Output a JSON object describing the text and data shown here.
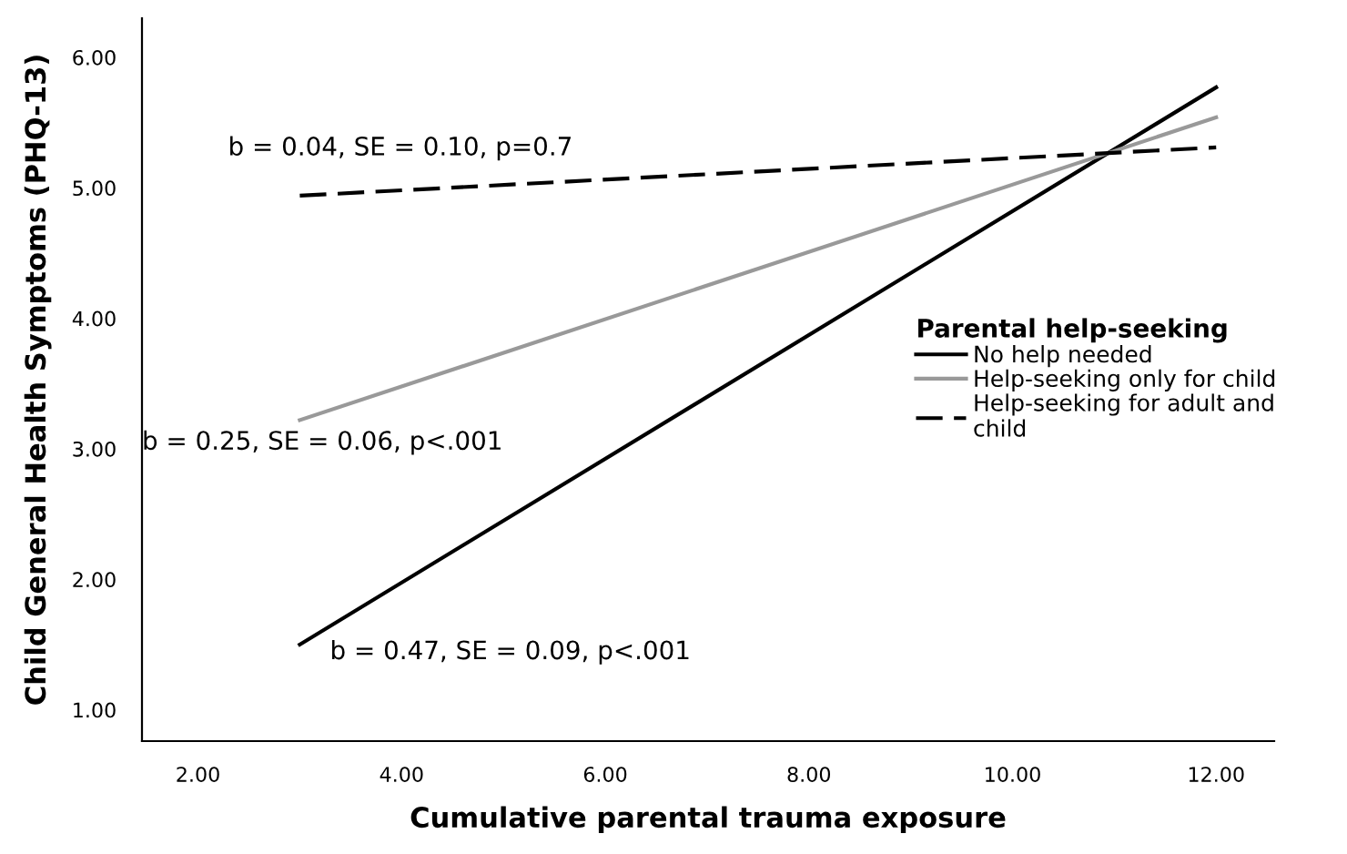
{
  "chart_data": {
    "type": "line",
    "xlabel": "Cumulative parental trauma exposure",
    "ylabel": "Child General Health Symptoms (PHQ-13)",
    "legend_title": "Parental help-seeking",
    "x": [
      3,
      12
    ],
    "series": [
      {
        "name": "No help needed",
        "color": "#000000",
        "values": [
          1.5,
          5.77
        ],
        "line_style": "solid"
      },
      {
        "name": "Help-seeking only for child",
        "color": "#999999",
        "values": [
          3.22,
          5.54
        ],
        "line_style": "solid"
      },
      {
        "name": "Help-seeking for adult and\nchild",
        "color": "#000000",
        "values": [
          4.94,
          5.31
        ],
        "line_style": "dashed"
      }
    ],
    "xlim": [
      1.45,
      12.57
    ],
    "ylim": [
      0.76,
      6.3
    ],
    "xticks": [
      {
        "value": 2,
        "label": "2.00"
      },
      {
        "value": 4,
        "label": "4.00"
      },
      {
        "value": 6,
        "label": "6.00"
      },
      {
        "value": 8,
        "label": "8.00"
      },
      {
        "value": 10,
        "label": "10.00"
      },
      {
        "value": 12,
        "label": "12.00"
      }
    ],
    "yticks": [
      {
        "value": 1,
        "label": "1.00"
      },
      {
        "value": 2,
        "label": "2.00"
      },
      {
        "value": 3,
        "label": "3.00"
      },
      {
        "value": 4,
        "label": "4.00"
      },
      {
        "value": 5,
        "label": "5.00"
      },
      {
        "value": 6,
        "label": "6.00"
      }
    ],
    "annotations": [
      "b = 0.04, SE = 0.10, p=0.7",
      "b = 0.25, SE = 0.06, p<.001",
      "b = 0.47, SE = 0.09, p<.001"
    ],
    "grid": false,
    "legend": "center right",
    "marker": "none"
  }
}
